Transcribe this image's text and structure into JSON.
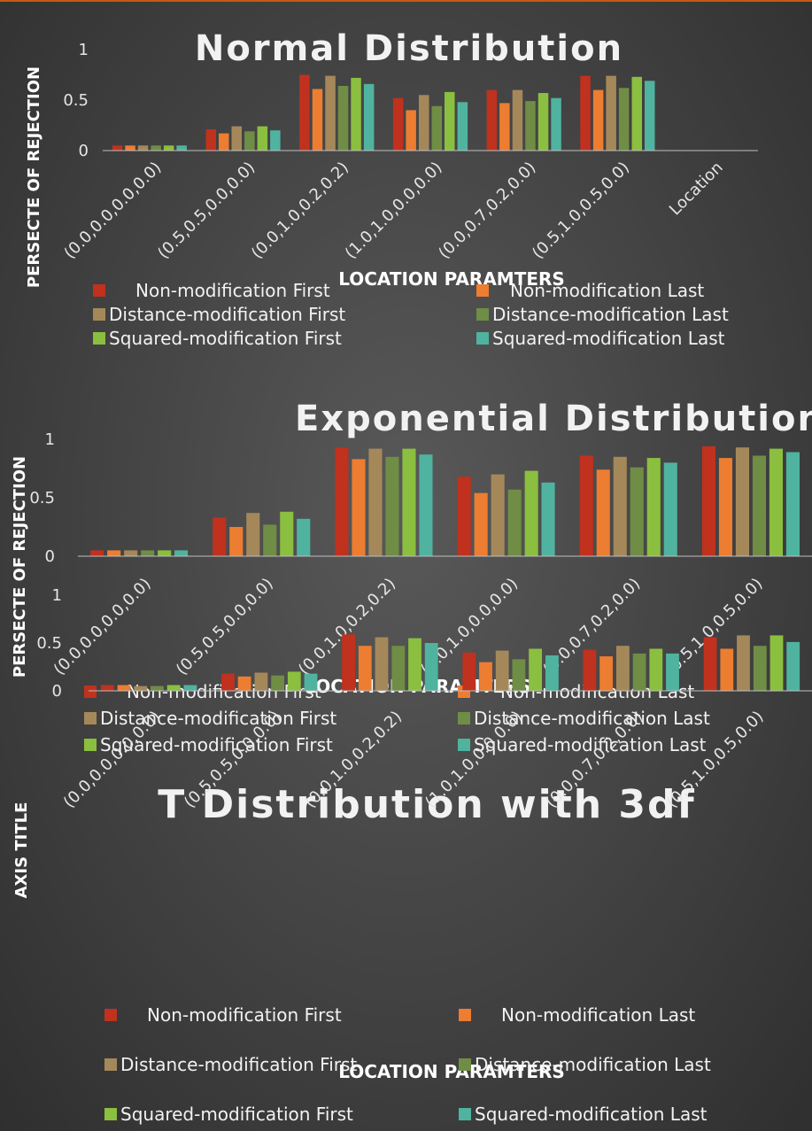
{
  "colors": {
    "accent": "#c55a11",
    "background": "#464646",
    "axis": "#bfbfbf",
    "series": [
      "#c0311e",
      "#ed7d31",
      "#a5885a",
      "#6f8d45",
      "#8bbf3f",
      "#4fb3a0"
    ]
  },
  "chart_data": [
    {
      "type": "bar",
      "title": "Normal Distribution",
      "xlabel": "LOCATION PARAMTERS",
      "ylabel": "PERSECTE OF REJECTION",
      "ylim": [
        0,
        1
      ],
      "yticks": [
        "0",
        "0.5",
        "1"
      ],
      "grid": false,
      "legend_position": "bottom",
      "categories": [
        "(0.0,0.0,0.0,0.0)",
        "(0.5,0.5,0.0,0.0)",
        "(0.0,1.0,0.2,0.2)",
        "(1.0,1.0,0.0,0.0)",
        "(0.0,0.7,0.2,0.0)",
        "(0.5,1.0,0.5,0.0)",
        "Location"
      ],
      "series": [
        {
          "name": "Non-modification First",
          "values": [
            0.05,
            0.21,
            0.75,
            0.52,
            0.6,
            0.74,
            null
          ]
        },
        {
          "name": "Non-modification Last",
          "values": [
            0.05,
            0.17,
            0.61,
            0.4,
            0.47,
            0.6,
            null
          ]
        },
        {
          "name": "Distance-modification First",
          "values": [
            0.05,
            0.24,
            0.74,
            0.55,
            0.6,
            0.74,
            null
          ]
        },
        {
          "name": "Distance-modification Last",
          "values": [
            0.05,
            0.19,
            0.64,
            0.44,
            0.49,
            0.62,
            null
          ]
        },
        {
          "name": "Squared-modification First",
          "values": [
            0.05,
            0.24,
            0.72,
            0.58,
            0.57,
            0.73,
            null
          ]
        },
        {
          "name": "Squared-modification Last",
          "values": [
            0.05,
            0.2,
            0.66,
            0.48,
            0.52,
            0.69,
            null
          ]
        }
      ]
    },
    {
      "type": "bar",
      "title": "Exponential Distribution",
      "xlabel": "LOCATION PARAMTERS",
      "ylabel": "PERSECTE OF REJECTION",
      "ylim": [
        0,
        1
      ],
      "yticks": [
        "0",
        "0.5",
        "1"
      ],
      "grid": false,
      "legend_position": "bottom",
      "categories": [
        "(0.0,0.0,0.0,0.0)",
        "(0.5,0.5,0.0,0.0)",
        "(0.0,1.0,0.2,0.2)",
        "(1.0,1.0,0.0,0.0)",
        "(0.0,0.7,0.2,0.0)",
        "(0.5,1.0,0.5,0.0)"
      ],
      "series": [
        {
          "name": "Non-modification First",
          "values": [
            0.05,
            0.33,
            0.93,
            0.68,
            0.86,
            0.94
          ]
        },
        {
          "name": "Non-modification Last",
          "values": [
            0.05,
            0.25,
            0.83,
            0.54,
            0.74,
            0.84
          ]
        },
        {
          "name": "Distance-modification First",
          "values": [
            0.05,
            0.37,
            0.92,
            0.7,
            0.85,
            0.93
          ]
        },
        {
          "name": "Distance-modification Last",
          "values": [
            0.05,
            0.27,
            0.85,
            0.57,
            0.76,
            0.86
          ]
        },
        {
          "name": "Squared-modification First",
          "values": [
            0.05,
            0.38,
            0.92,
            0.73,
            0.84,
            0.92
          ]
        },
        {
          "name": "Squared-modification Last",
          "values": [
            0.05,
            0.32,
            0.87,
            0.63,
            0.8,
            0.89
          ]
        }
      ]
    },
    {
      "type": "bar",
      "title": "T Distribution with 3df",
      "xlabel": "LOCATION PARAMTERS",
      "ylabel": "AXIS TITLE",
      "ylim": [
        0,
        1
      ],
      "yticks": [
        "0",
        "0.5",
        "1"
      ],
      "grid": false,
      "legend_position": "bottom",
      "categories": [
        "(0.0,0.0,0.0,0.0)",
        "(0.5,0.5,0.0,0.0)",
        "(0.0,1.0,0.2,0.2)",
        "(1.0,1.0,0.0,0.0)",
        "(0.0,0.7,0.2,0.0)",
        "(0.5,1.0,0.5,0.0)"
      ],
      "series": [
        {
          "name": "Non-modification First",
          "values": [
            0.06,
            0.18,
            0.59,
            0.4,
            0.43,
            0.56
          ]
        },
        {
          "name": "Non-modification Last",
          "values": [
            0.06,
            0.15,
            0.47,
            0.3,
            0.36,
            0.44
          ]
        },
        {
          "name": "Distance-modification First",
          "values": [
            0.05,
            0.19,
            0.56,
            0.42,
            0.47,
            0.58
          ]
        },
        {
          "name": "Distance-modification Last",
          "values": [
            0.05,
            0.16,
            0.47,
            0.33,
            0.39,
            0.47
          ]
        },
        {
          "name": "Squared-modification First",
          "values": [
            0.06,
            0.2,
            0.55,
            0.44,
            0.44,
            0.58
          ]
        },
        {
          "name": "Squared-modification Last",
          "values": [
            0.06,
            0.18,
            0.5,
            0.37,
            0.39,
            0.51
          ]
        }
      ]
    }
  ]
}
